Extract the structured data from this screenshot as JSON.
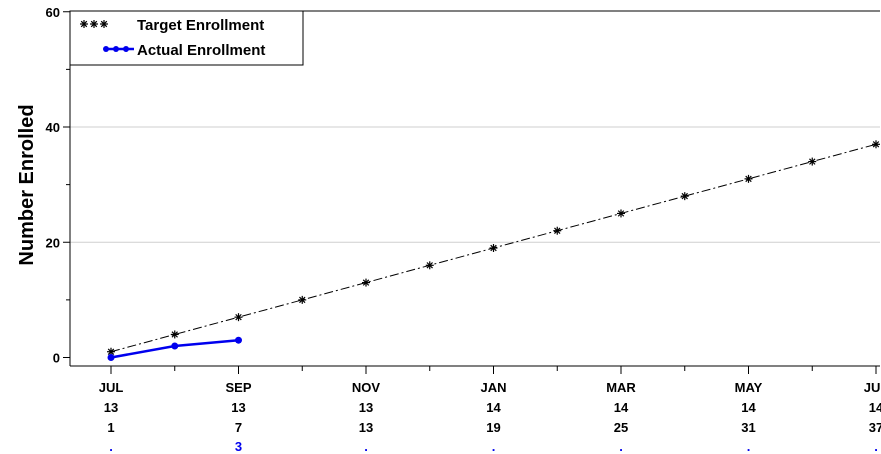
{
  "chart_data": {
    "type": "line",
    "ylabel": "Number Enrolled",
    "ylim": [
      0,
      60
    ],
    "yticks": [
      0,
      20,
      40,
      60
    ],
    "grid": "horizontal",
    "legend_position": "top-left",
    "x": [
      0,
      1,
      2,
      3,
      4,
      5,
      6,
      7,
      8,
      9,
      10,
      11,
      12
    ],
    "x_ticks": [
      {
        "x": 0,
        "month": "JUL",
        "year": "13",
        "target": "1",
        "actual": "."
      },
      {
        "x": 2,
        "month": "SEP",
        "year": "13",
        "target": "7",
        "actual": "3"
      },
      {
        "x": 4,
        "month": "NOV",
        "year": "13",
        "target": "13",
        "actual": "."
      },
      {
        "x": 6,
        "month": "JAN",
        "year": "14",
        "target": "19",
        "actual": "."
      },
      {
        "x": 8,
        "month": "MAR",
        "year": "14",
        "target": "25",
        "actual": "."
      },
      {
        "x": 10,
        "month": "MAY",
        "year": "14",
        "target": "31",
        "actual": "."
      },
      {
        "x": 12,
        "month": "JUL",
        "year": "14",
        "target": "37",
        "actual": "."
      }
    ],
    "series": [
      {
        "name": "Target Enrollment",
        "color": "#000000",
        "marker": "asterisk",
        "line": "dash-dot",
        "x": [
          0,
          1,
          2,
          3,
          4,
          5,
          6,
          7,
          8,
          9,
          10,
          11,
          12
        ],
        "values": [
          1,
          4,
          7,
          10,
          13,
          16,
          19,
          22,
          25,
          28,
          31,
          34,
          37
        ]
      },
      {
        "name": "Actual Enrollment",
        "color": "#0000ee",
        "marker": "circle",
        "line": "solid",
        "x": [
          0,
          1,
          2
        ],
        "values": [
          0,
          2,
          3
        ]
      }
    ]
  }
}
